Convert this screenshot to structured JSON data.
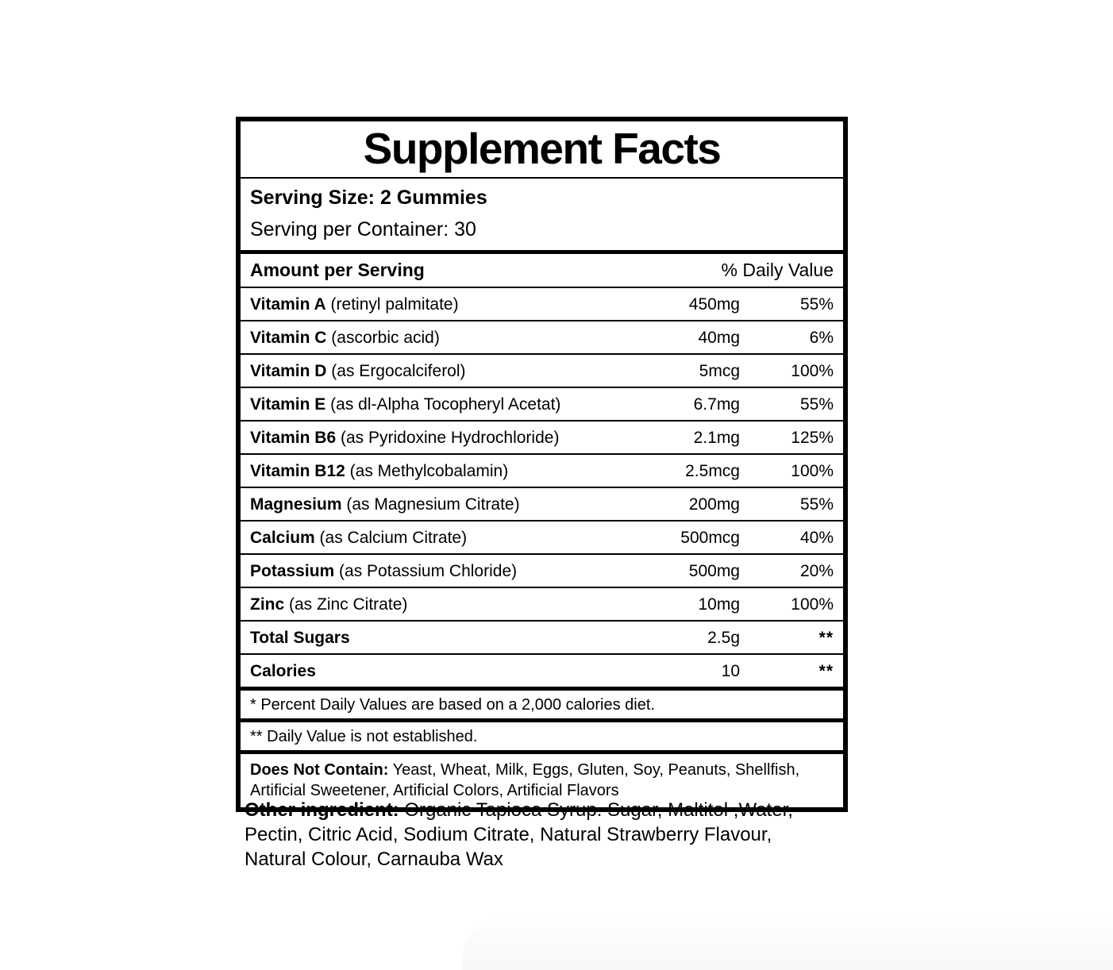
{
  "colors": {
    "ink": "#000000",
    "background": "#ffffff"
  },
  "panel": {
    "title": "Supplement Facts",
    "serving": {
      "size_line": "Serving Size: 2 Gummies",
      "per_container_line": "Serving per Container: 30"
    },
    "table": {
      "amount_header": "Amount per Serving",
      "daily_value_header": "% Daily Value",
      "rows": [
        {
          "name": "Vitamin A",
          "detail": "(retinyl palmitate)",
          "amount": "450mg",
          "dv": "55%"
        },
        {
          "name": "Vitamin C",
          "detail": "(ascorbic acid)",
          "amount": "40mg",
          "dv": "6%"
        },
        {
          "name": "Vitamin D",
          "detail": "(as Ergocalciferol)",
          "amount": "5mcg",
          "dv": "100%"
        },
        {
          "name": "Vitamin E",
          "detail": "(as dl-Alpha Tocopheryl Acetat)",
          "amount": "6.7mg",
          "dv": "55%"
        },
        {
          "name": "Vitamin B6",
          "detail": "(as Pyridoxine Hydrochloride)",
          "amount": "2.1mg",
          "dv": "125%"
        },
        {
          "name": "Vitamin B12",
          "detail": "(as Methylcobalamin)",
          "amount": "2.5mcg",
          "dv": "100%"
        },
        {
          "name": "Magnesium",
          "detail": "(as Magnesium Citrate)",
          "amount": "200mg",
          "dv": "55%"
        },
        {
          "name": "Calcium",
          "detail": "(as Calcium Citrate)",
          "amount": "500mcg",
          "dv": "40%"
        },
        {
          "name": "Potassium",
          "detail": "(as Potassium Chloride)",
          "amount": "500mg",
          "dv": "20%"
        },
        {
          "name": "Zinc",
          "detail": "(as Zinc Citrate)",
          "amount": "10mg",
          "dv": "100%"
        },
        {
          "name": "Total Sugars",
          "detail": "",
          "amount": "2.5g",
          "dv": "**"
        },
        {
          "name": "Calories",
          "detail": "",
          "amount": "10",
          "dv": "**"
        }
      ]
    },
    "footnotes": [
      "* Percent Daily Values are based on a 2,000 calories diet.",
      "** Daily Value is not established."
    ],
    "does_not_contain": {
      "label": "Does Not Contain:",
      "text": "Yeast, Wheat, Milk, Eggs, Gluten, Soy, Peanuts, Shellfish, Artificial Sweetener, Artificial Colors, Artificial Flavors"
    }
  },
  "other_ingredients": {
    "label": "Other ingredient:",
    "text": "Organic Tapioca Syrup. Sugar, Maltitol ,Water, Pectin, Citric Acid, Sodium Citrate, Natural Strawberry Flavour, Natural Colour, Carnauba Wax"
  }
}
